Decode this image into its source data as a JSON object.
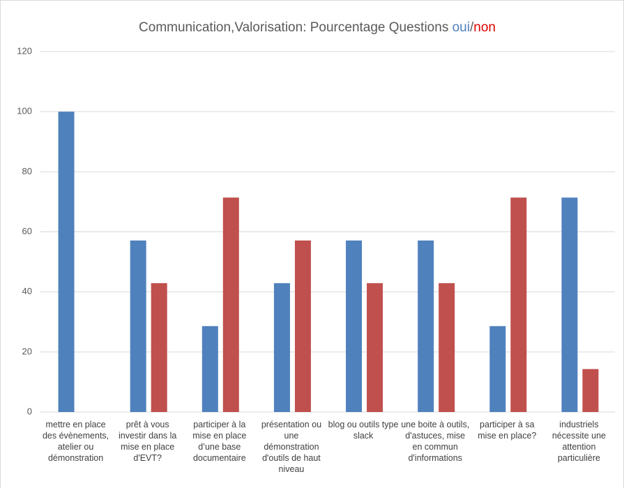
{
  "chart_data": {
    "type": "bar",
    "title": "Communication,Valorisation:  Pourcentage Questions",
    "title_separator": "/",
    "categories": [
      "mettre en place des évènements, atelier ou démonstration",
      "prêt à vous investir dans la mise en place d'EVT?",
      "participer à la mise en place d’une base documentaire",
      "présentation ou une démonstration d'outils de haut niveau",
      "blog ou outils type slack",
      "une boite à outils, d'astuces, mise en commun d'informations",
      "participer à sa mise en place?",
      "industriels nécessite une attention particulière"
    ],
    "series": [
      {
        "name": "oui",
        "color": "#4f81bd",
        "values": [
          100,
          57.1,
          28.6,
          42.9,
          57.1,
          57.1,
          28.6,
          71.4
        ]
      },
      {
        "name": "non",
        "color": "#c0504d",
        "values": [
          0,
          42.9,
          71.4,
          57.1,
          42.9,
          42.9,
          71.4,
          14.3
        ]
      }
    ],
    "ylim": [
      0,
      120
    ],
    "yticks": [
      0,
      20,
      40,
      60,
      80,
      100,
      120
    ],
    "grid": true
  }
}
